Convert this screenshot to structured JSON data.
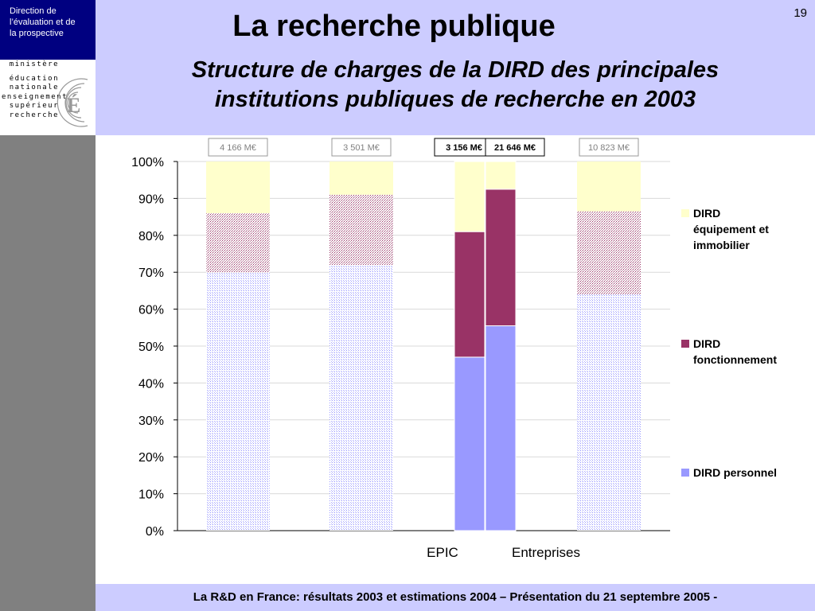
{
  "header": {
    "department_lines": [
      "Direction de",
      "l’évaluation  et de",
      "la prospective"
    ],
    "ministry_lines": [
      "ministère",
      "éducation",
      "nationale",
      "enseignement",
      "supérieur",
      "recherche"
    ],
    "page_number": "19",
    "title": "La recherche publique",
    "subtitle_lines": [
      "Structure de charges de la DIRD des principales",
      "institutions publiques de recherche en 2003"
    ]
  },
  "footer": {
    "text": "La R&D en France: résultats 2003 et estimations 2004 – Présentation du 21 septembre 2005 -"
  },
  "colors": {
    "band": "#ccccff",
    "navy": "#000080",
    "gray_strip": "#808080",
    "personnel": "#9999ff",
    "fonctionnement": "#993366",
    "equipement": "#ffffcc"
  },
  "chart_data": {
    "type": "bar",
    "stacked": "percent",
    "title": "Structure de charges de la DIRD des principales institutions publiques de recherche en 2003",
    "ylim": [
      0,
      100
    ],
    "yticks": [
      "0%",
      "10%",
      "20%",
      "30%",
      "40%",
      "50%",
      "60%",
      "70%",
      "80%",
      "90%",
      "100%"
    ],
    "categories": [
      "",
      "",
      "EPIC",
      "Entreprises",
      ""
    ],
    "totals": [
      "4 166 M€",
      "3 501 M€",
      "3 156 M€",
      "21 646 M€",
      "10 823 M€"
    ],
    "highlighted": [
      false,
      false,
      true,
      true,
      false
    ],
    "series": [
      {
        "name": "DIRD personnel",
        "values": [
          70,
          72,
          47,
          55.5,
          64
        ]
      },
      {
        "name": "DIRD fonctionnement",
        "values": [
          16,
          19,
          34,
          37,
          22.5
        ]
      },
      {
        "name": "DIRD équipement et immobilier",
        "values": [
          14,
          9,
          19,
          7.5,
          13.5
        ]
      }
    ],
    "legend": {
      "position": "right",
      "entries": [
        {
          "lines": [
            "DIRD",
            "équipement et",
            "immobilier"
          ],
          "series": 2
        },
        {
          "lines": [
            "DIRD",
            "fonctionnement"
          ],
          "series": 1
        },
        {
          "lines": [
            "DIRD personnel"
          ],
          "series": 0
        }
      ]
    },
    "grid": true
  }
}
